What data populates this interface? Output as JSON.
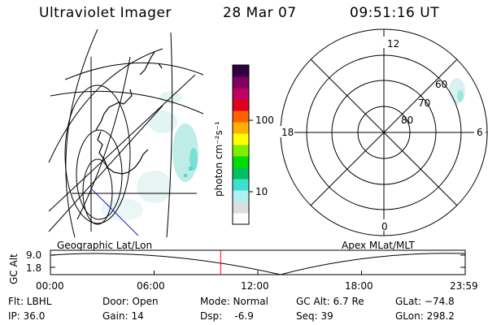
{
  "header": {
    "instrument": "Ultraviolet Imager",
    "date": "28 Mar 07",
    "time": "09:51:16 UT"
  },
  "colorbar": {
    "unit_label": "photon cm⁻²s⁻¹",
    "ticks": [
      {
        "value": 100,
        "label": "100"
      },
      {
        "value": 10,
        "label": "10"
      }
    ],
    "scale": "log",
    "colors": [
      "#ffffff",
      "#dddddd",
      "#b0f0f0",
      "#40e0d0",
      "#00c060",
      "#00dd00",
      "#80ee00",
      "#ffff00",
      "#ffb000",
      "#ff6000",
      "#e00020",
      "#c00060",
      "#800060",
      "#300040"
    ]
  },
  "geo_map": {
    "label": "Geographic Lat/Lon"
  },
  "polar_plot": {
    "label": "Apex MLat/MLT",
    "mlt_labels": {
      "top": "12",
      "left": "18",
      "right": "6",
      "bottom": "0"
    },
    "lat_labels": [
      "60",
      "70",
      "80"
    ]
  },
  "timeline": {
    "y_label": "GC Alt",
    "y_ticks": [
      "9.0",
      "1.8"
    ],
    "x_ticks": [
      "00:00",
      "06:00",
      "12:00",
      "18:00",
      "23:59"
    ],
    "current_time_hours": 9.85,
    "current_color": "#ff0000"
  },
  "info": {
    "flt": "Flt: LBHL",
    "ip": "IP: 36.0",
    "door": "Door: Open",
    "gain": "Gain: 14",
    "mode": "Mode: Normal",
    "dsp": "Dsp:    -6.9",
    "gcalt": "GC Alt: 6.7 Re",
    "seq": "Seq: 39",
    "glat": "GLat: −74.8",
    "glon": "GLon: 298.2"
  }
}
